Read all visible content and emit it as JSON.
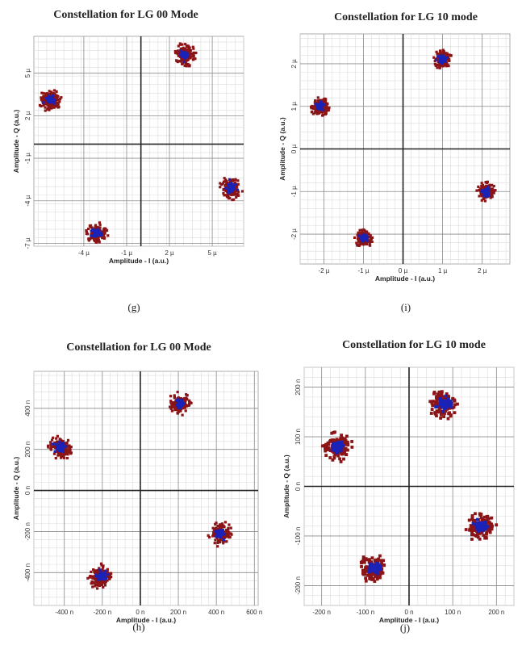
{
  "chart_data": [
    {
      "id": "g",
      "type": "scatter",
      "title": "Constellation for LG 00 Mode",
      "caption": "(g)",
      "xlabel": "Amplitude - I (a.u.)",
      "ylabel": "Amplitude - Q (a.u.)",
      "xlim": [
        -7.5,
        7.2
      ],
      "ylim": [
        -7.2,
        7.6
      ],
      "unit_suffix": "µ",
      "xticks": [
        -4,
        -1,
        2,
        5
      ],
      "yticks": [
        -7,
        -4,
        -1,
        2,
        5
      ],
      "grid": true,
      "cluster_radius": 0.75,
      "points": [
        {
          "x": -6.3,
          "y": 3.1
        },
        {
          "x": 3.1,
          "y": 6.3
        },
        {
          "x": 6.3,
          "y": -3.1
        },
        {
          "x": -3.1,
          "y": -6.3
        }
      ]
    },
    {
      "id": "i",
      "type": "scatter",
      "title": "Constellation for LG 10 mode",
      "caption": "(i)",
      "xlabel": "Amplitude - I (a.u.)",
      "ylabel": "Amplitude - Q (a.u.)",
      "xlim": [
        -2.6,
        2.7
      ],
      "ylim": [
        -2.7,
        2.7
      ],
      "unit_suffix": "µ",
      "xticks": [
        -2,
        -1,
        0,
        1,
        2
      ],
      "yticks": [
        -2,
        -1,
        0,
        1,
        2
      ],
      "grid": true,
      "cluster_radius": 0.22,
      "points": [
        {
          "x": -2.1,
          "y": 1.0
        },
        {
          "x": 1.0,
          "y": 2.1
        },
        {
          "x": 2.1,
          "y": -1.0
        },
        {
          "x": -1.0,
          "y": -2.1
        }
      ]
    },
    {
      "id": "h",
      "type": "scatter",
      "title": "Constellation for LG 00 Mode",
      "caption": "(h)",
      "xlabel": "Amplitude - I (a.u.)",
      "ylabel": "Amplitude - Q (a.u.)",
      "xlim": [
        -560,
        620
      ],
      "ylim": [
        -560,
        580
      ],
      "unit_suffix": "n",
      "xticks": [
        -400,
        -200,
        0,
        200,
        400,
        600
      ],
      "yticks": [
        -400,
        -200,
        0,
        200,
        400
      ],
      "grid": true,
      "cluster_radius": 60,
      "points": [
        {
          "x": -420,
          "y": 210
        },
        {
          "x": 210,
          "y": 420
        },
        {
          "x": 420,
          "y": -210
        },
        {
          "x": -210,
          "y": -420
        }
      ]
    },
    {
      "id": "j",
      "type": "scatter",
      "title": "Constellation for LG 10 mode",
      "caption": "(j)",
      "xlabel": "Amplitude - I (a.u.)",
      "ylabel": "Amplitude - Q (a.u.)",
      "xlim": [
        -240,
        240
      ],
      "ylim": [
        -240,
        240
      ],
      "unit_suffix": "n",
      "xticks": [
        -200,
        -100,
        0,
        100,
        200
      ],
      "yticks": [
        -200,
        -100,
        0,
        100,
        200
      ],
      "grid": true,
      "cluster_radius": 32,
      "points": [
        {
          "x": -165,
          "y": 80
        },
        {
          "x": 80,
          "y": 165
        },
        {
          "x": 165,
          "y": -80
        },
        {
          "x": -80,
          "y": -165
        }
      ]
    }
  ],
  "colors": {
    "outer_cluster": "#8b1416",
    "inner_cluster": "#1a22b8",
    "major_grid": "#8c8c8c",
    "minor_grid": "#dcdcdc",
    "axis_line": "#222222"
  }
}
